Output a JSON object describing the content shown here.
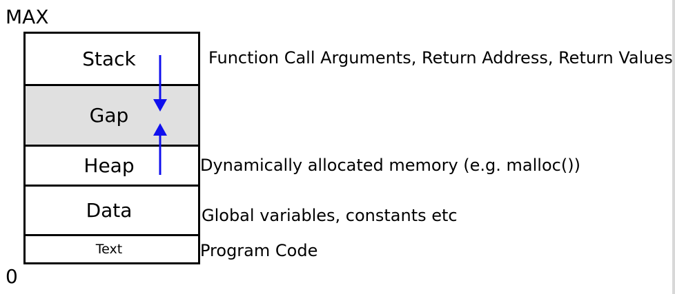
{
  "labels": {
    "max": "MAX",
    "zero": "0"
  },
  "segments": {
    "stack": "Stack",
    "gap": "Gap",
    "heap": "Heap",
    "data": "Data",
    "text": "Text"
  },
  "descriptions": {
    "stack": "Function Call Arguments, Return Address, Return Values",
    "heap": "Dynamically allocated memory (e.g. malloc())",
    "data": "Global variables, constants etc",
    "text": "Program Code"
  },
  "colors": {
    "arrow": "#1010ee",
    "gap_fill": "#e0e0e0"
  }
}
